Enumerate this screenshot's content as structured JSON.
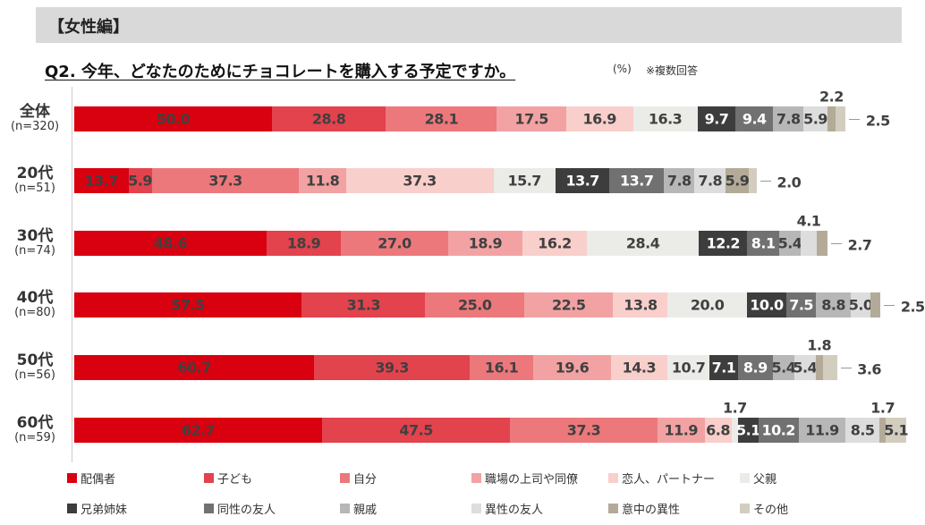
{
  "header": {
    "banner": "【女性編】",
    "title": "Q2. 今年、どなたのためにチョコレートを購入する予定ですか。",
    "unit": "(%)",
    "note": "※複数回答"
  },
  "chart_data": {
    "type": "bar",
    "orientation": "horizontal-stacked",
    "title": "Q2. 今年、どなたのためにチョコレートを購入する予定ですか。",
    "categories": [
      {
        "group": "全体",
        "n": "(n=320)"
      },
      {
        "group": "20代",
        "n": "(n=51)"
      },
      {
        "group": "30代",
        "n": "(n=74)"
      },
      {
        "group": "40代",
        "n": "(n=80)"
      },
      {
        "group": "50代",
        "n": "(n=56)"
      },
      {
        "group": "60代",
        "n": "(n=59)"
      }
    ],
    "series": [
      {
        "name": "配偶者",
        "color": "#d9000f",
        "values": [
          50.0,
          13.7,
          48.6,
          57.5,
          60.7,
          62.7
        ]
      },
      {
        "name": "子ども",
        "color": "#e2434d",
        "values": [
          28.8,
          5.9,
          18.9,
          31.3,
          39.3,
          47.5
        ]
      },
      {
        "name": "自分",
        "color": "#ec787c",
        "values": [
          28.1,
          37.3,
          27.0,
          25.0,
          16.1,
          37.3
        ]
      },
      {
        "name": "職場の上司や同僚",
        "color": "#f2a2a3",
        "values": [
          17.5,
          11.8,
          18.9,
          22.5,
          19.6,
          11.9
        ]
      },
      {
        "name": "恋人、パートナー",
        "color": "#f9cfcb",
        "values": [
          16.9,
          37.3,
          16.2,
          13.8,
          14.3,
          6.8
        ]
      },
      {
        "name": "父親",
        "color": "#ebebe8",
        "values": [
          16.3,
          15.7,
          28.4,
          20.0,
          10.7,
          1.7
        ]
      },
      {
        "name": "兄弟姉妹",
        "color": "#3d3d3d",
        "values": [
          9.7,
          13.7,
          12.2,
          10.0,
          7.1,
          5.1
        ]
      },
      {
        "name": "同性の友人",
        "color": "#717171",
        "values": [
          9.4,
          13.7,
          8.1,
          7.5,
          8.9,
          10.2
        ]
      },
      {
        "name": "親戚",
        "color": "#b7b7b7",
        "values": [
          7.8,
          7.8,
          5.4,
          8.8,
          5.4,
          11.9
        ]
      },
      {
        "name": "異性の友人",
        "color": "#dddddd",
        "values": [
          5.9,
          7.8,
          4.1,
          5.0,
          5.4,
          8.5
        ]
      },
      {
        "name": "意中の異性",
        "color": "#b3ab98",
        "values": [
          2.2,
          5.9,
          2.7,
          2.5,
          1.8,
          1.7
        ]
      },
      {
        "name": "その他",
        "color": "#d3cdbf",
        "values": [
          2.5,
          2.0,
          null,
          null,
          3.6,
          5.1
        ]
      }
    ],
    "legend_position": "bottom",
    "grid": false
  }
}
